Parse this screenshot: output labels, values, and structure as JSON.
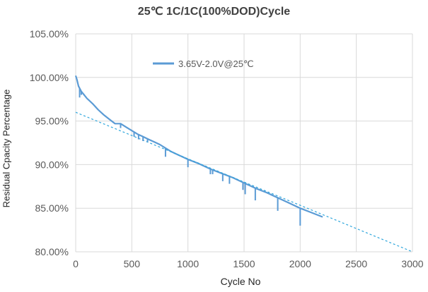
{
  "chart_data": {
    "type": "line",
    "title": "25℃ 1C/1C(100%DOD)Cycle",
    "xlabel": "Cycle No",
    "ylabel": "Residual Cpacity Percentage",
    "xlim": [
      0,
      3000
    ],
    "ylim": [
      80,
      105
    ],
    "xticks": [
      "0",
      "500",
      "1000",
      "1500",
      "2000",
      "2500",
      "3000"
    ],
    "xtick_values": [
      0,
      500,
      1000,
      1500,
      2000,
      2500,
      3000
    ],
    "yticks": [
      "80.00%",
      "85.00%",
      "90.00%",
      "95.00%",
      "100.00%",
      "105.00%"
    ],
    "ytick_values": [
      80,
      85,
      90,
      95,
      100,
      105
    ],
    "grid": true,
    "legend": "top-left",
    "series": [
      {
        "name": "3.65V-2.0V@25℃",
        "color": "#5b9bd5",
        "style": "solid",
        "x": [
          0,
          10,
          25,
          50,
          75,
          100,
          150,
          200,
          250,
          300,
          350,
          400,
          450,
          500,
          550,
          600,
          650,
          700,
          750,
          800,
          850,
          900,
          950,
          1000,
          1100,
          1200,
          1300,
          1400,
          1500,
          1600,
          1700,
          1800,
          1900,
          2000,
          2100,
          2200
        ],
        "y": [
          100.2,
          99.8,
          99.0,
          98.4,
          98.0,
          97.6,
          97.0,
          96.3,
          95.7,
          95.2,
          94.7,
          94.7,
          94.3,
          93.9,
          93.5,
          93.2,
          92.9,
          92.6,
          92.3,
          91.9,
          91.5,
          91.2,
          90.9,
          90.6,
          90.1,
          89.5,
          89.0,
          88.5,
          87.9,
          87.3,
          86.8,
          86.2,
          85.6,
          85.0,
          84.5,
          84.0
        ]
      },
      {
        "name": "",
        "color": "#2ea6dc",
        "style": "dashed",
        "x": [
          0,
          3000
        ],
        "y": [
          96.0,
          80.0
        ]
      }
    ],
    "dips": [
      {
        "x": 35,
        "y": 97.7
      },
      {
        "x": 50,
        "y": 98.0
      },
      {
        "x": 240,
        "y": 95.9
      },
      {
        "x": 400,
        "y": 94.2
      },
      {
        "x": 520,
        "y": 93.2
      },
      {
        "x": 560,
        "y": 92.9
      },
      {
        "x": 600,
        "y": 92.7
      },
      {
        "x": 640,
        "y": 92.6
      },
      {
        "x": 800,
        "y": 90.9
      },
      {
        "x": 1000,
        "y": 89.7
      },
      {
        "x": 1200,
        "y": 88.9
      },
      {
        "x": 1220,
        "y": 88.9
      },
      {
        "x": 1310,
        "y": 88.1
      },
      {
        "x": 1370,
        "y": 87.8
      },
      {
        "x": 1490,
        "y": 87.1
      },
      {
        "x": 1510,
        "y": 86.6
      },
      {
        "x": 1600,
        "y": 85.9
      },
      {
        "x": 1800,
        "y": 84.7
      },
      {
        "x": 2000,
        "y": 83.0
      }
    ]
  }
}
